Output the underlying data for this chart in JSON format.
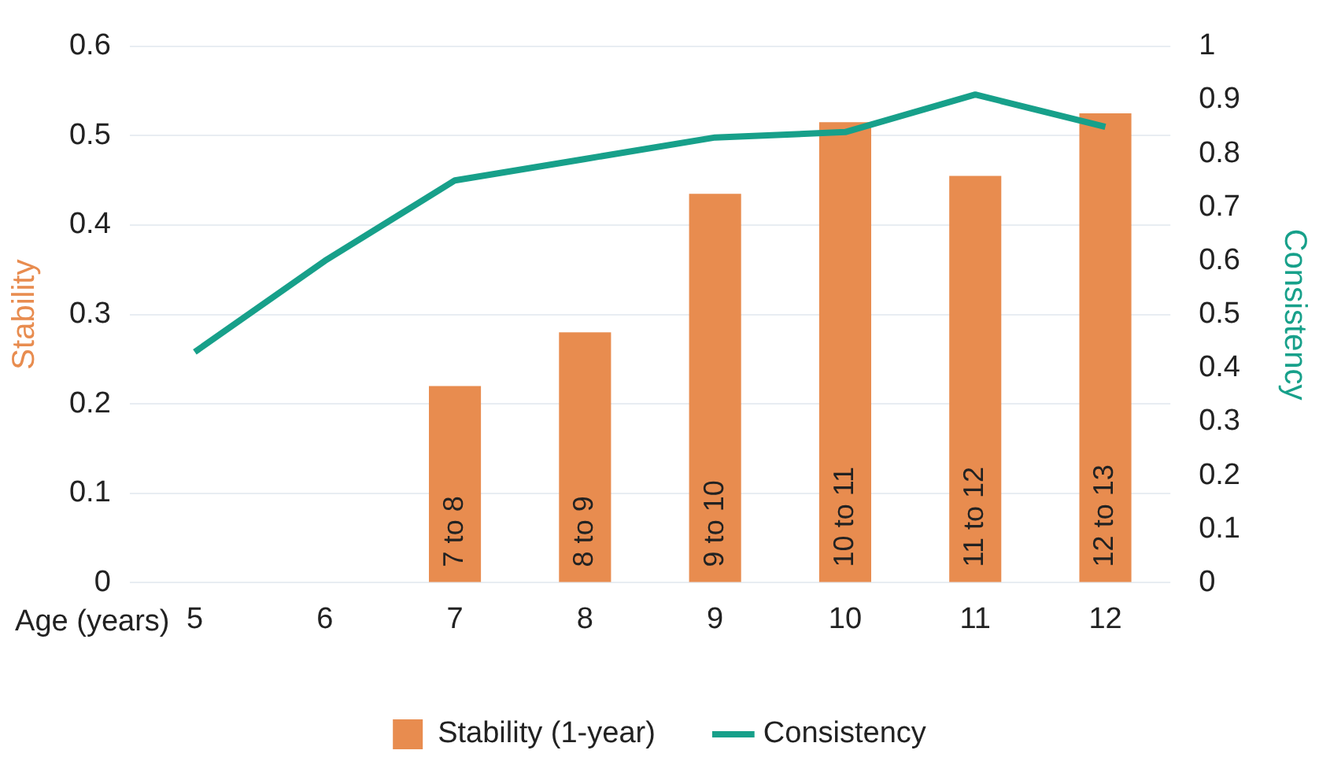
{
  "chart_data": {
    "type": "bar",
    "xlabel": "Age (years)",
    "ylabel": "Stability",
    "y2label": "Consistency",
    "categories": [
      "5",
      "6",
      "7",
      "8",
      "9",
      "10",
      "11",
      "12"
    ],
    "series": [
      {
        "name": "Stability (1-year)",
        "color": "#e88c4f",
        "values": [
          null,
          null,
          0.22,
          0.28,
          0.435,
          0.515,
          0.455,
          0.525
        ]
      },
      {
        "name": "Consistency",
        "type": "line",
        "axis": "y2",
        "color": "#17a08a",
        "values": [
          0.43,
          0.6,
          0.75,
          0.79,
          0.83,
          0.84,
          0.91,
          0.85
        ]
      }
    ],
    "ylim": [
      0,
      0.6
    ],
    "yticks": [
      0,
      0.1,
      0.2,
      0.3,
      0.4,
      0.5,
      0.6
    ],
    "y2lim": [
      0,
      1
    ],
    "y2ticks": [
      0,
      0.1,
      0.2,
      0.3,
      0.4,
      0.5,
      0.6,
      0.7,
      0.8,
      0.9,
      1
    ],
    "grid": "y",
    "legend": "bottom",
    "marker": "none",
    "line_style": "solid",
    "annotations": [
      {
        "text": "7 to 8",
        "x": "7",
        "y": 0
      },
      {
        "text": "8 to 9",
        "x": "8",
        "y": 0
      },
      {
        "text": "9 to 10",
        "x": "9",
        "y": 0
      },
      {
        "text": "10 to 11",
        "x": "10",
        "y": 0
      },
      {
        "text": "11 to 12",
        "x": "11",
        "y": 0
      },
      {
        "text": "12 to 13",
        "x": "12",
        "y": 0
      }
    ]
  }
}
